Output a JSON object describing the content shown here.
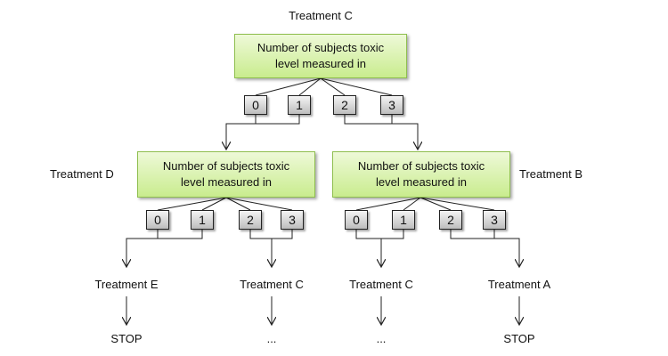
{
  "root": {
    "treatment_label": "Treatment C",
    "box_line1": "Number of subjects toxic",
    "box_line2": "level measured in",
    "options": [
      "0",
      "1",
      "2",
      "3"
    ]
  },
  "left_node": {
    "treatment_label": "Treatment D",
    "box_line1": "Number of subjects toxic",
    "box_line2": "level measured in",
    "options": [
      "0",
      "1",
      "2",
      "3"
    ]
  },
  "right_node": {
    "treatment_label": "Treatment B",
    "box_line1": "Number of subjects toxic",
    "box_line2": "level measured in",
    "options": [
      "0",
      "1",
      "2",
      "3"
    ]
  },
  "outcomes": [
    {
      "treatment": "Treatment E",
      "next": "STOP"
    },
    {
      "treatment": "Treatment C",
      "next": "..."
    },
    {
      "treatment": "Treatment C",
      "next": "..."
    },
    {
      "treatment": "Treatment A",
      "next": "STOP"
    }
  ]
}
